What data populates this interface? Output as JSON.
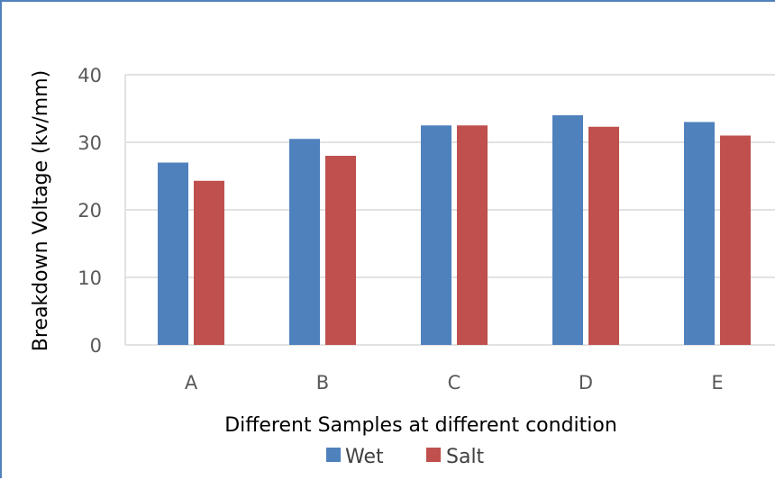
{
  "chart_data": {
    "type": "bar",
    "categories": [
      "A",
      "B",
      "C",
      "D",
      "E"
    ],
    "series": [
      {
        "name": "Wet",
        "values": [
          27,
          30.5,
          32.5,
          34,
          33
        ],
        "color": "#4f81bd"
      },
      {
        "name": "Salt",
        "values": [
          24.3,
          28,
          32.5,
          32.3,
          31
        ],
        "color": "#c0504d"
      }
    ],
    "xlabel": "Different Samples at different condition",
    "ylabel": "Breakdown Voltage (kv/mm)",
    "ylim": [
      0,
      40
    ],
    "yticks": [
      "0",
      "10",
      "20",
      "30",
      "40"
    ],
    "grid": true,
    "gridline_color": "#d9d9d9",
    "legend_position": "bottom"
  }
}
